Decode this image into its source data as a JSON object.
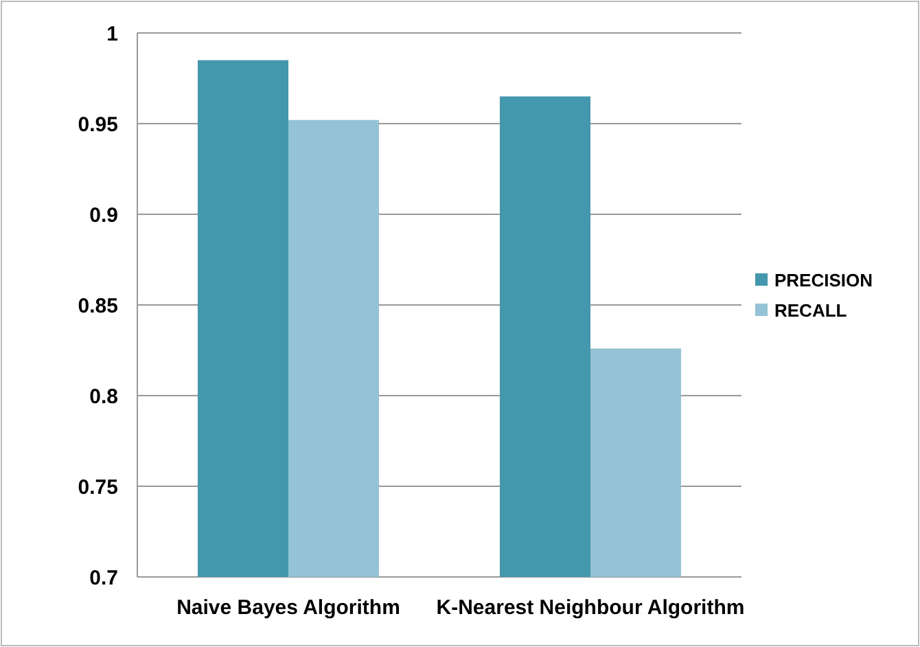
{
  "chart_data": {
    "type": "bar",
    "categories": [
      "Naive Bayes Algorithm",
      "K-Nearest Neighbour Algorithm"
    ],
    "series": [
      {
        "name": "PRECISION",
        "color": "#4398ae",
        "values": [
          0.985,
          0.965
        ]
      },
      {
        "name": "RECALL",
        "color": "#93c3d4",
        "values": [
          0.952,
          0.826
        ]
      }
    ],
    "ylim": [
      0.7,
      1
    ],
    "yticks": [
      0.7,
      0.75,
      0.8,
      0.85,
      0.9,
      0.95,
      1
    ],
    "grid": "y",
    "legend": "right"
  }
}
